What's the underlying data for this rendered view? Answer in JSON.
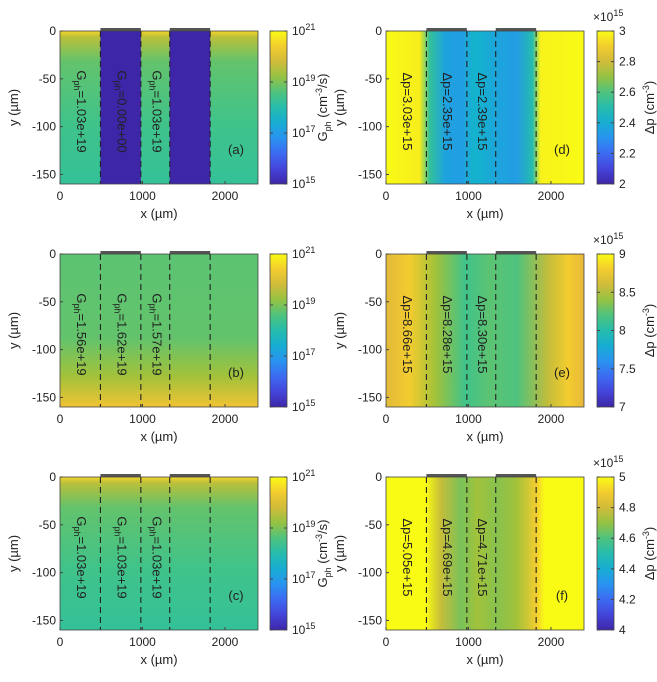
{
  "figure_title": "",
  "palette": [
    "#3e26a8",
    "#4752f0",
    "#2c8ff4",
    "#12b5cb",
    "#3ac38f",
    "#9fc23a",
    "#f0b83a",
    "#f9fb15"
  ],
  "chart_data": [
    {
      "type": "heatmap",
      "panel_label": "(a)",
      "xlabel": "x (µm)",
      "ylabel": "y (µm)",
      "xlim": [
        0,
        2400
      ],
      "ylim": [
        -160,
        0
      ],
      "xticks": [
        0,
        1000,
        2000
      ],
      "yticks": [
        0,
        -50,
        -100,
        -150
      ],
      "colorbar": {
        "scale": "log",
        "range": [
          1000000000000000.0,
          1e+21
        ],
        "ticks": [
          "10^15",
          "10^17",
          "10^19",
          "10^21"
        ],
        "label": "G_ph (cm^-3/s)"
      },
      "divider_x": [
        490,
        980,
        1330,
        1820
      ],
      "electrodes_x": [
        [
          490,
          980
        ],
        [
          1330,
          1820
        ]
      ],
      "regions": [
        {
          "x": [
            0,
            490
          ],
          "value": 1.03e+19,
          "annotation": "G_ph=1.03e+19"
        },
        {
          "x": [
            490,
            980
          ],
          "value": 0,
          "annotation": "G_ph=0.00e+00"
        },
        {
          "x": [
            980,
            1330
          ],
          "value": 1.03e+19,
          "annotation": "G_ph=1.03e+19"
        },
        {
          "x": [
            1330,
            1820
          ],
          "value": 0,
          "annotation": ""
        },
        {
          "x": [
            1820,
            2400
          ],
          "value": 1.03e+19,
          "annotation": ""
        }
      ]
    },
    {
      "type": "heatmap",
      "panel_label": "(b)",
      "xlabel": "x (µm)",
      "ylabel": "y (µm)",
      "xlim": [
        0,
        2400
      ],
      "ylim": [
        -160,
        0
      ],
      "xticks": [
        0,
        1000,
        2000
      ],
      "yticks": [
        0,
        -50,
        -100,
        -150
      ],
      "colorbar": {
        "scale": "log",
        "range": [
          1000000000000000.0,
          1e+21
        ],
        "ticks": [
          "10^15",
          "10^17",
          "10^19",
          "10^21"
        ],
        "label": ""
      },
      "divider_x": [
        490,
        980,
        1330,
        1820
      ],
      "electrodes_x": [
        [
          490,
          980
        ],
        [
          1330,
          1820
        ]
      ],
      "regions": [
        {
          "x": [
            0,
            490
          ],
          "value": 1.56e+19,
          "annotation": "G_ph=1.56e+19"
        },
        {
          "x": [
            490,
            980
          ],
          "value": 1.62e+19,
          "annotation": "G_ph=1.62e+19"
        },
        {
          "x": [
            980,
            1330
          ],
          "value": 1.57e+19,
          "annotation": "G_ph=1.57e+19"
        }
      ]
    },
    {
      "type": "heatmap",
      "panel_label": "(c)",
      "xlabel": "x (µm)",
      "ylabel": "y (µm)",
      "xlim": [
        0,
        2400
      ],
      "ylim": [
        -160,
        0
      ],
      "xticks": [
        0,
        1000,
        2000
      ],
      "yticks": [
        0,
        -50,
        -100,
        -150
      ],
      "colorbar": {
        "scale": "log",
        "range": [
          1000000000000000.0,
          1e+21
        ],
        "ticks": [
          "10^15",
          "10^17",
          "10^19",
          "10^21"
        ],
        "label": "G_ph (cm^-3/s)"
      },
      "divider_x": [
        490,
        980,
        1330,
        1820
      ],
      "electrodes_x": [
        [
          490,
          980
        ],
        [
          1330,
          1820
        ]
      ],
      "regions": [
        {
          "x": [
            0,
            490
          ],
          "value": 1.03e+19,
          "annotation": "G_ph=1.03e+19"
        },
        {
          "x": [
            490,
            980
          ],
          "value": 1.03e+19,
          "annotation": "G_ph=1.03e+19"
        },
        {
          "x": [
            980,
            1330
          ],
          "value": 1.03e+19,
          "annotation": "G_ph=1.03e+19"
        }
      ]
    },
    {
      "type": "heatmap",
      "panel_label": "(d)",
      "xlabel": "x (µm)",
      "ylabel": "y (µm)",
      "xlim": [
        0,
        2400
      ],
      "ylim": [
        -160,
        0
      ],
      "xticks": [
        0,
        1000,
        2000
      ],
      "yticks": [
        0,
        -50,
        -100,
        -150
      ],
      "colorbar": {
        "scale": "linear",
        "range": [
          2000000000000000.0,
          3000000000000000.0
        ],
        "ticks": [
          "2",
          "2.2",
          "2.4",
          "2.6",
          "2.8",
          "3"
        ],
        "multiplier": "×10^15",
        "label": "Δp (cm^-3)"
      },
      "divider_x": [
        490,
        980,
        1330,
        1820
      ],
      "electrodes_x": [
        [
          490,
          980
        ],
        [
          1330,
          1820
        ]
      ],
      "regions": [
        {
          "x": [
            0,
            490
          ],
          "value": 3030000000000000.0,
          "annotation": "Δp=3.03e+15"
        },
        {
          "x": [
            490,
            980
          ],
          "value": 2350000000000000.0,
          "annotation": "Δp=2.35e+15"
        },
        {
          "x": [
            980,
            1330
          ],
          "value": 2390000000000000.0,
          "annotation": "Δp=2.39e+15"
        }
      ]
    },
    {
      "type": "heatmap",
      "panel_label": "(e)",
      "xlabel": "x (µm)",
      "ylabel": "y (µm)",
      "xlim": [
        0,
        2400
      ],
      "ylim": [
        -160,
        0
      ],
      "xticks": [
        0,
        1000,
        2000
      ],
      "yticks": [
        0,
        -50,
        -100,
        -150
      ],
      "colorbar": {
        "scale": "linear",
        "range": [
          7000000000000000.0,
          9000000000000000.0
        ],
        "ticks": [
          "7",
          "7.5",
          "8",
          "8.5",
          "9"
        ],
        "multiplier": "×10^15",
        "label": "Δp (cm^-3)"
      },
      "divider_x": [
        490,
        980,
        1330,
        1820
      ],
      "electrodes_x": [
        [
          490,
          980
        ],
        [
          1330,
          1820
        ]
      ],
      "regions": [
        {
          "x": [
            0,
            490
          ],
          "value": 8660000000000000.0,
          "annotation": "Δp=8.66e+15"
        },
        {
          "x": [
            490,
            980
          ],
          "value": 8280000000000000.0,
          "annotation": "Δp=8.28e+15"
        },
        {
          "x": [
            980,
            1330
          ],
          "value": 8300000000000000.0,
          "annotation": "Δp=8.30e+15"
        }
      ]
    },
    {
      "type": "heatmap",
      "panel_label": "(f)",
      "xlabel": "x (µm)",
      "ylabel": "y (µm)",
      "xlim": [
        0,
        2400
      ],
      "ylim": [
        -160,
        0
      ],
      "xticks": [
        0,
        1000,
        2000
      ],
      "yticks": [
        0,
        -50,
        -100,
        -150
      ],
      "colorbar": {
        "scale": "linear",
        "range": [
          4000000000000000.0,
          5000000000000000.0
        ],
        "ticks": [
          "4",
          "4.2",
          "4.4",
          "4.6",
          "4.8",
          "5"
        ],
        "multiplier": "×10^15",
        "label": "Δp (cm^-3)"
      },
      "divider_x": [
        490,
        980,
        1330,
        1820
      ],
      "electrodes_x": [
        [
          490,
          980
        ],
        [
          1330,
          1820
        ]
      ],
      "regions": [
        {
          "x": [
            0,
            490
          ],
          "value": 5050000000000000.0,
          "annotation": "Δp=5.05e+15"
        },
        {
          "x": [
            490,
            980
          ],
          "value": 4690000000000000.0,
          "annotation": "Δp=4.69e+15"
        },
        {
          "x": [
            980,
            1330
          ],
          "value": 4710000000000000.0,
          "annotation": "Δp=4.71e+15"
        }
      ]
    }
  ]
}
